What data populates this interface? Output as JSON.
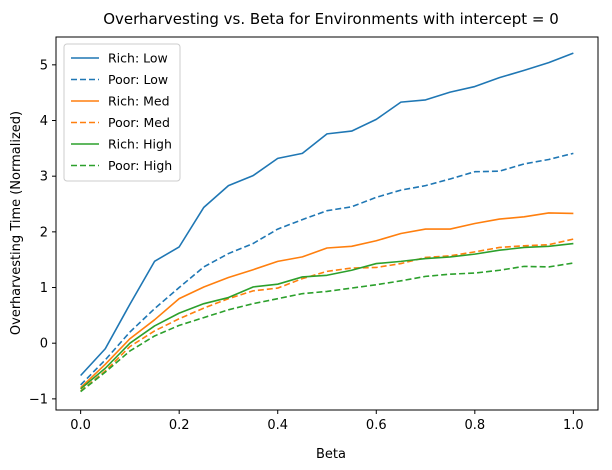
{
  "chart_data": {
    "type": "line",
    "title": "Overharvesting vs. Beta for Environments with intercept = 0",
    "xlabel": "Beta",
    "ylabel": "Overharvesting Time (Normalized)",
    "xlim": [
      -0.05,
      1.05
    ],
    "ylim": [
      -1.2,
      5.5
    ],
    "xticks": [
      0.0,
      0.2,
      0.4,
      0.6,
      0.8,
      1.0
    ],
    "xtick_labels": [
      "0.0",
      "0.2",
      "0.4",
      "0.6",
      "0.8",
      "1.0"
    ],
    "yticks": [
      -1,
      0,
      1,
      2,
      3,
      4,
      5
    ],
    "ytick_labels": [
      "−1",
      "0",
      "1",
      "2",
      "3",
      "4",
      "5"
    ],
    "grid": false,
    "legend_position": "top-left",
    "x": [
      0.0,
      0.05,
      0.1,
      0.15,
      0.2,
      0.25,
      0.3,
      0.35,
      0.4,
      0.45,
      0.5,
      0.55,
      0.6,
      0.65,
      0.7,
      0.75,
      0.8,
      0.85,
      0.9,
      0.95,
      1.0
    ],
    "series": [
      {
        "name": "Rich: Low",
        "color": "#1f77b4",
        "dash": "solid",
        "values": [
          -0.58,
          -0.1,
          0.7,
          1.47,
          1.73,
          2.44,
          2.83,
          3.01,
          3.32,
          3.41,
          3.76,
          3.81,
          4.02,
          4.33,
          4.37,
          4.51,
          4.61,
          4.77,
          4.9,
          5.04,
          5.21
        ]
      },
      {
        "name": "Poor: Low",
        "color": "#1f77b4",
        "dash": "dashed",
        "values": [
          -0.75,
          -0.3,
          0.2,
          0.62,
          1.0,
          1.37,
          1.61,
          1.79,
          2.05,
          2.22,
          2.38,
          2.45,
          2.62,
          2.75,
          2.83,
          2.95,
          3.08,
          3.09,
          3.22,
          3.3,
          3.41
        ]
      },
      {
        "name": "Rich: Med",
        "color": "#ff7f0e",
        "dash": "solid",
        "values": [
          -0.8,
          -0.38,
          0.08,
          0.42,
          0.8,
          1.01,
          1.18,
          1.32,
          1.47,
          1.55,
          1.71,
          1.74,
          1.84,
          1.97,
          2.05,
          2.05,
          2.15,
          2.23,
          2.27,
          2.34,
          2.33
        ]
      },
      {
        "name": "Poor: Med",
        "color": "#ff7f0e",
        "dash": "dashed",
        "values": [
          -0.86,
          -0.5,
          -0.06,
          0.22,
          0.44,
          0.63,
          0.8,
          0.94,
          0.99,
          1.16,
          1.29,
          1.35,
          1.36,
          1.43,
          1.54,
          1.57,
          1.64,
          1.72,
          1.75,
          1.77,
          1.87
        ]
      },
      {
        "name": "Rich: High",
        "color": "#2ca02c",
        "dash": "solid",
        "values": [
          -0.82,
          -0.45,
          0.0,
          0.31,
          0.54,
          0.71,
          0.82,
          1.01,
          1.06,
          1.19,
          1.22,
          1.31,
          1.43,
          1.47,
          1.52,
          1.55,
          1.6,
          1.67,
          1.72,
          1.74,
          1.79
        ]
      },
      {
        "name": "Poor: High",
        "color": "#2ca02c",
        "dash": "dashed",
        "values": [
          -0.87,
          -0.52,
          -0.14,
          0.13,
          0.32,
          0.46,
          0.6,
          0.71,
          0.8,
          0.89,
          0.93,
          0.99,
          1.05,
          1.12,
          1.2,
          1.24,
          1.26,
          1.31,
          1.38,
          1.37,
          1.44
        ]
      }
    ]
  }
}
